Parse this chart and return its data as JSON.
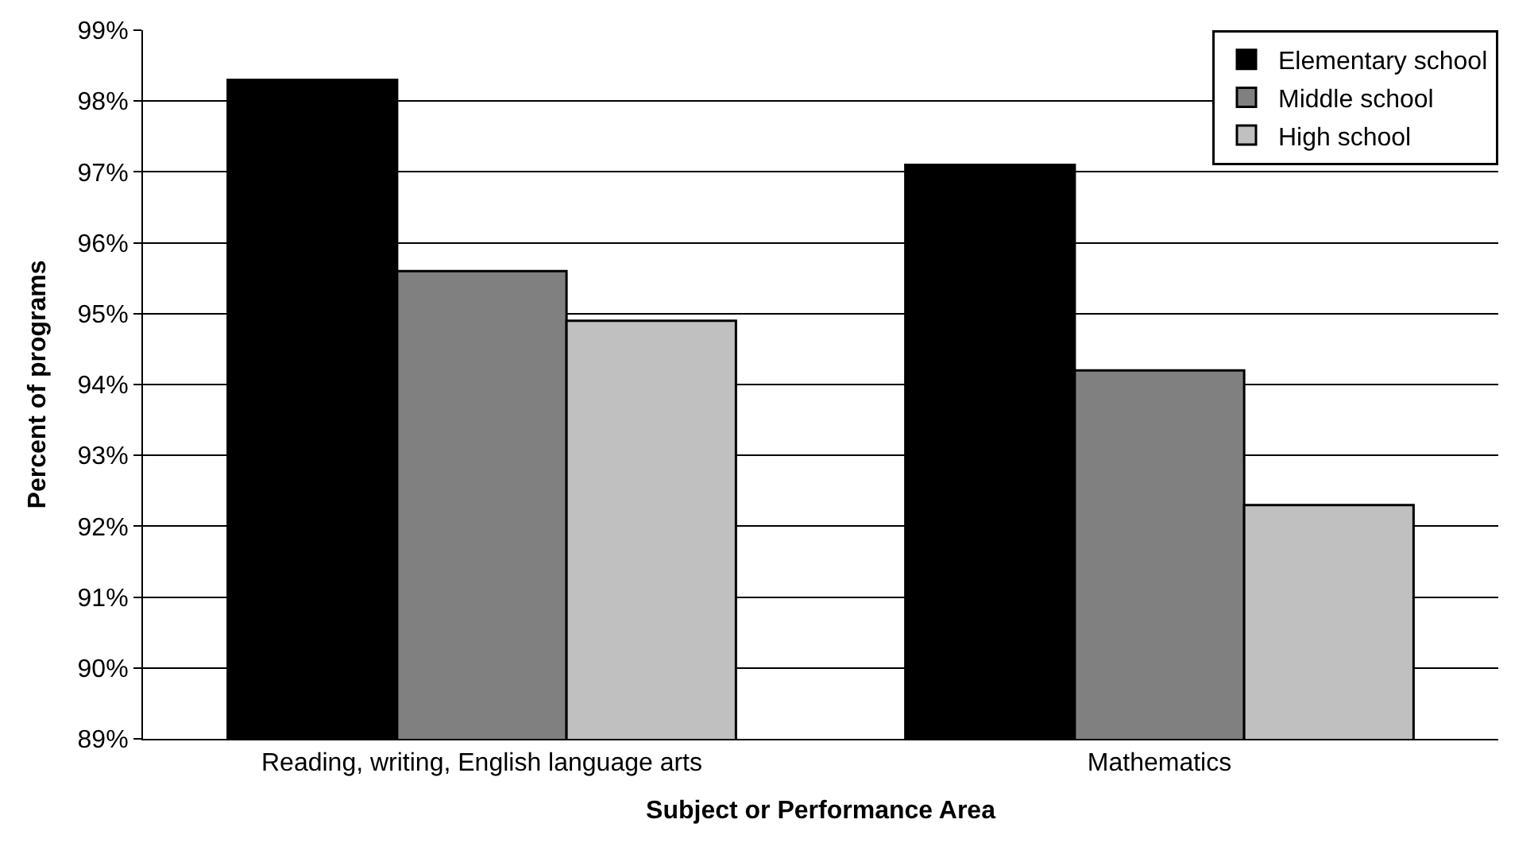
{
  "chart_data": {
    "type": "bar",
    "xlabel": "Subject or Performance Area",
    "ylabel": "Percent of programs",
    "categories": [
      "Reading, writing, English language arts",
      "Mathematics"
    ],
    "series": [
      {
        "name": "Elementary school",
        "color": "#000000",
        "values": [
          98.3,
          97.1
        ]
      },
      {
        "name": "Middle school",
        "color": "#808080",
        "values": [
          95.6,
          94.2
        ]
      },
      {
        "name": "High school",
        "color": "#c0c0c0",
        "values": [
          94.9,
          92.3
        ]
      }
    ],
    "ylim": [
      89,
      99
    ],
    "yticks": [
      {
        "value": 89,
        "label": "89%"
      },
      {
        "value": 90,
        "label": "90%"
      },
      {
        "value": 91,
        "label": "91%"
      },
      {
        "value": 92,
        "label": "92%"
      },
      {
        "value": 93,
        "label": "93%"
      },
      {
        "value": 94,
        "label": "94%"
      },
      {
        "value": 95,
        "label": "95%"
      },
      {
        "value": 96,
        "label": "96%"
      },
      {
        "value": 97,
        "label": "97%"
      },
      {
        "value": 98,
        "label": "98%"
      },
      {
        "value": 99,
        "label": "99%"
      }
    ],
    "grid": "y",
    "legend": "top right"
  }
}
